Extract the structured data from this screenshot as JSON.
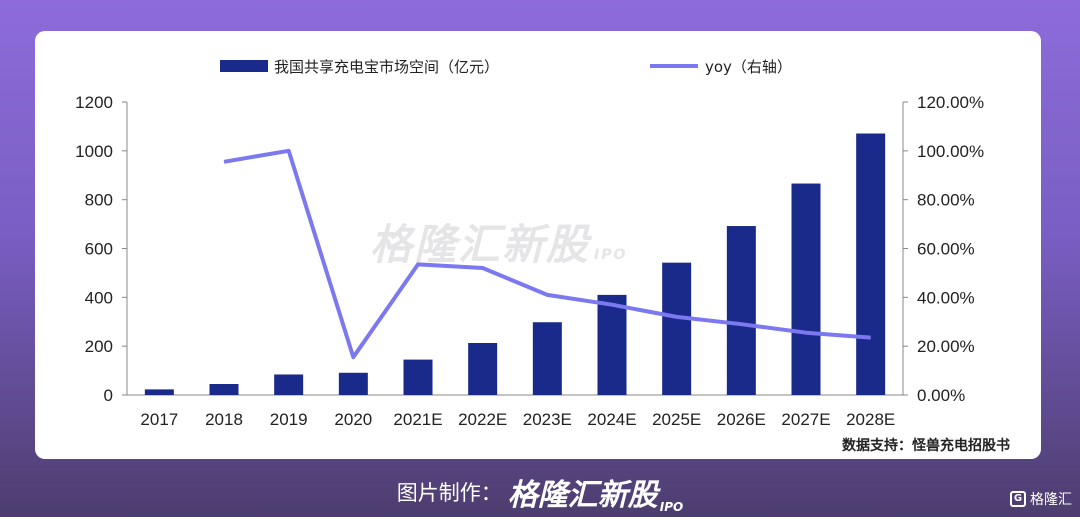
{
  "chart_data": {
    "type": "bar",
    "categories": [
      "2017",
      "2018",
      "2019",
      "2020",
      "2021E",
      "2022E",
      "2023E",
      "2024E",
      "2025E",
      "2026E",
      "2027E",
      "2028E"
    ],
    "series": [
      {
        "name": "我国共享充电宝市场空间（亿元）",
        "type": "bar",
        "axis": "left",
        "color": "#1a2a8a",
        "values": [
          23,
          45,
          84,
          91,
          145,
          213,
          298,
          410,
          542,
          692,
          866,
          1071
        ]
      },
      {
        "name": "yoy（右轴）",
        "type": "line",
        "axis": "right",
        "color": "#7b78f0",
        "values": [
          null,
          95.5,
          100,
          15.5,
          53.5,
          52,
          41,
          37,
          32,
          29,
          25.5,
          23.5
        ]
      }
    ],
    "left_axis": {
      "min": 0,
      "max": 1200,
      "ticks": [
        "0",
        "200",
        "400",
        "600",
        "800",
        "1000",
        "1200"
      ]
    },
    "right_axis": {
      "min": 0,
      "max": 120,
      "ticks": [
        "0.00%",
        "20.00%",
        "40.00%",
        "60.00%",
        "80.00%",
        "100.00%",
        "120.00%"
      ]
    },
    "legend_position": "top",
    "grid": false,
    "source": "数据支持：怪兽充电招股书"
  },
  "watermark": {
    "text": "格隆汇新股",
    "suffix": "IPO"
  },
  "footer": {
    "label": "图片制作：",
    "brand": "格隆汇新股",
    "brand_suffix": "IPO"
  },
  "corner_logo": {
    "icon": "G",
    "text": "格隆汇"
  }
}
